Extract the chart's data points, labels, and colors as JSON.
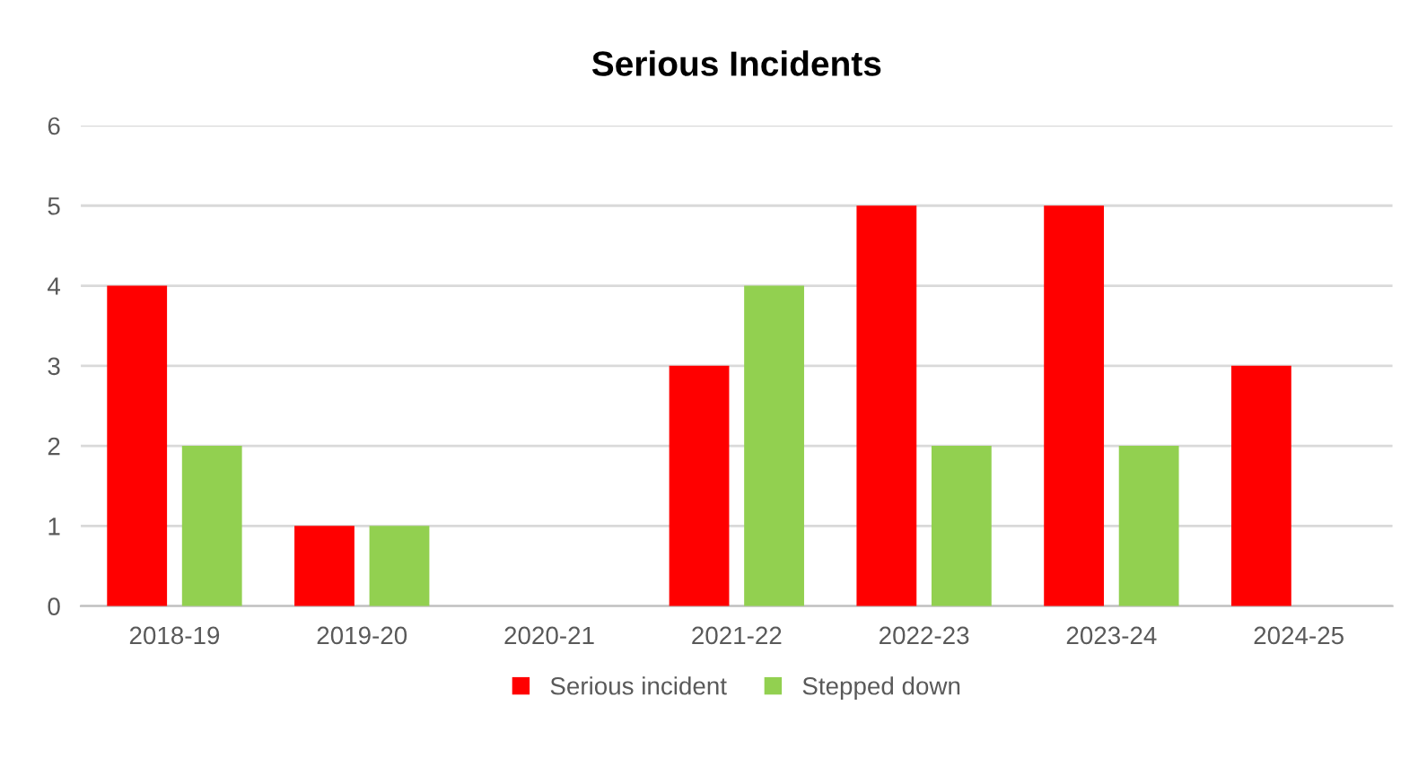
{
  "chart_data": {
    "type": "bar",
    "title": "Serious Incidents",
    "categories": [
      "2018-19",
      "2019-20",
      "2020-21",
      "2021-22",
      "2022-23",
      "2023-24",
      "2024-25"
    ],
    "series": [
      {
        "name": "Serious incident",
        "color": "#ff0000",
        "values": [
          4,
          1,
          0,
          3,
          5,
          5,
          3
        ]
      },
      {
        "name": "Stepped down",
        "color": "#92d050",
        "values": [
          2,
          1,
          0,
          4,
          2,
          2,
          0
        ]
      }
    ],
    "ylim": [
      0,
      6
    ],
    "yticks": [
      0,
      1,
      2,
      3,
      4,
      5,
      6
    ],
    "grid": "y",
    "legend": "bottom"
  }
}
